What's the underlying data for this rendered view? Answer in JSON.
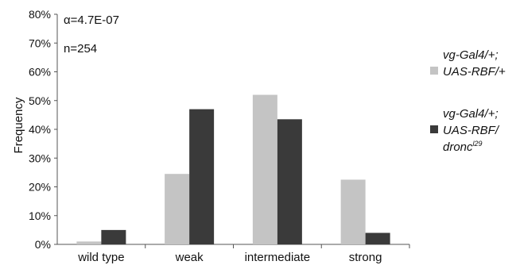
{
  "chart_data": {
    "type": "bar",
    "categories": [
      "wild type",
      "weak",
      "intermediate",
      "strong"
    ],
    "series": [
      {
        "legend_lines": [
          "vg-Gal4/+;",
          "UAS-RBF/+"
        ],
        "color": "#c4c4c4",
        "values": [
          1,
          24.5,
          52,
          22.5
        ]
      },
      {
        "legend_lines": [
          "vg-Gal4/+;",
          "UAS-RBF/",
          "dronc"
        ],
        "legend_sup": "l29",
        "color": "#3a3a3a",
        "values": [
          5,
          47,
          43.5,
          4
        ]
      }
    ],
    "ylabel": "Frequency",
    "ylim": [
      0,
      80
    ],
    "yticks": [
      "0%",
      "10%",
      "20%",
      "30%",
      "40%",
      "50%",
      "60%",
      "70%",
      "80%"
    ],
    "annotations": [
      "α=4.7E-07",
      "n=254"
    ],
    "legend_position": "right",
    "grid": false
  }
}
